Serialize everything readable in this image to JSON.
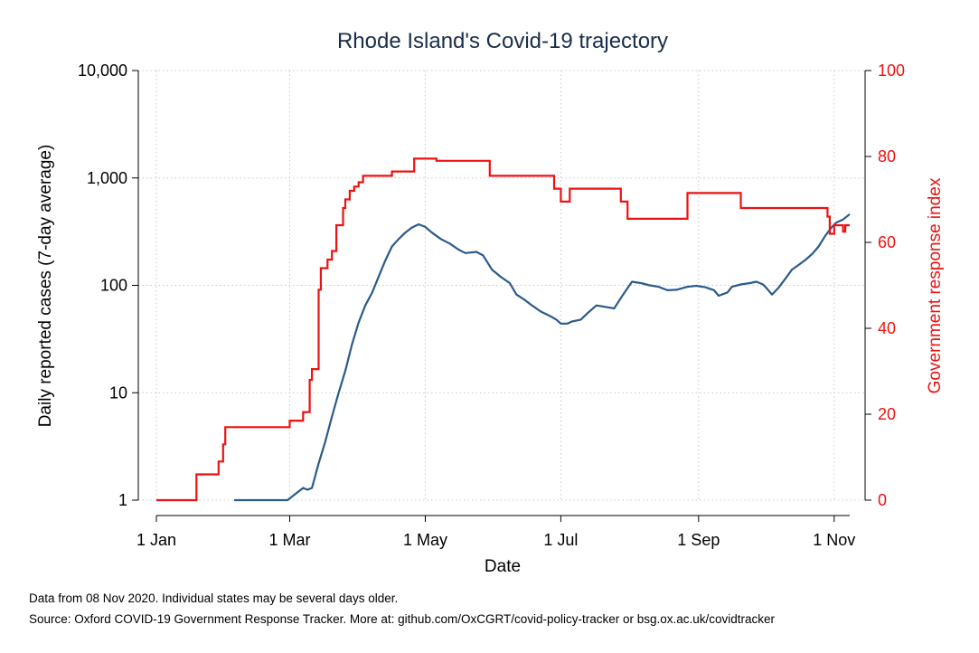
{
  "chart_data": {
    "type": "line",
    "title": "Rhode Island's Covid-19 trajectory",
    "xlabel": "Date",
    "ylabel_left": "Daily reported cases (7-day average)",
    "ylabel_right": "Government response index",
    "x_ticks": [
      "1 Jan",
      "1 Mar",
      "1 May",
      "1 Jul",
      "1 Sep",
      "1 Nov"
    ],
    "x_tick_dates": [
      "2020-01-01",
      "2020-03-01",
      "2020-05-01",
      "2020-07-01",
      "2020-09-01",
      "2020-11-01"
    ],
    "x_range": [
      "2020-01-01",
      "2020-11-08"
    ],
    "y_left_scale": "log",
    "y_left_ticks": [
      "1",
      "10",
      "100",
      "1,000",
      "10,000"
    ],
    "y_left_tick_values": [
      1,
      10,
      100,
      1000,
      10000
    ],
    "y_left_range": [
      1,
      10000
    ],
    "y_right_ticks": [
      "0",
      "20",
      "40",
      "60",
      "80",
      "100"
    ],
    "y_right_tick_values": [
      0,
      20,
      40,
      60,
      80,
      100
    ],
    "y_right_range": [
      0,
      100
    ],
    "grid": true,
    "series": [
      {
        "axis": "left",
        "color": "#2b5a8a",
        "points": [
          [
            "2020-02-05",
            1
          ],
          [
            "2020-02-29",
            1
          ],
          [
            "2020-03-07",
            1.3
          ],
          [
            "2020-03-09",
            1.25
          ],
          [
            "2020-03-11",
            1.3
          ],
          [
            "2020-03-14",
            2.2
          ],
          [
            "2020-03-17",
            3.5
          ],
          [
            "2020-03-20",
            6
          ],
          [
            "2020-03-23",
            10
          ],
          [
            "2020-03-26",
            16
          ],
          [
            "2020-03-29",
            28
          ],
          [
            "2020-04-01",
            45
          ],
          [
            "2020-04-04",
            65
          ],
          [
            "2020-04-07",
            85
          ],
          [
            "2020-04-10",
            120
          ],
          [
            "2020-04-13",
            170
          ],
          [
            "2020-04-16",
            230
          ],
          [
            "2020-04-19",
            270
          ],
          [
            "2020-04-22",
            310
          ],
          [
            "2020-04-25",
            345
          ],
          [
            "2020-04-28",
            370
          ],
          [
            "2020-05-01",
            350
          ],
          [
            "2020-05-04",
            310
          ],
          [
            "2020-05-08",
            270
          ],
          [
            "2020-05-12",
            245
          ],
          [
            "2020-05-16",
            215
          ],
          [
            "2020-05-19",
            200
          ],
          [
            "2020-05-24",
            205
          ],
          [
            "2020-05-27",
            190
          ],
          [
            "2020-05-31",
            140
          ],
          [
            "2020-06-04",
            120
          ],
          [
            "2020-06-08",
            105
          ],
          [
            "2020-06-11",
            82
          ],
          [
            "2020-06-14",
            75
          ],
          [
            "2020-06-18",
            65
          ],
          [
            "2020-06-22",
            57
          ],
          [
            "2020-06-26",
            52
          ],
          [
            "2020-06-29",
            48
          ],
          [
            "2020-07-01",
            44
          ],
          [
            "2020-07-04",
            44
          ],
          [
            "2020-07-06",
            46
          ],
          [
            "2020-07-10",
            48
          ],
          [
            "2020-07-13",
            55
          ],
          [
            "2020-07-17",
            65
          ],
          [
            "2020-07-21",
            63
          ],
          [
            "2020-07-25",
            61
          ],
          [
            "2020-07-29",
            82
          ],
          [
            "2020-08-02",
            108
          ],
          [
            "2020-08-06",
            105
          ],
          [
            "2020-08-10",
            100
          ],
          [
            "2020-08-14",
            97
          ],
          [
            "2020-08-18",
            90
          ],
          [
            "2020-08-22",
            91
          ],
          [
            "2020-08-27",
            97
          ],
          [
            "2020-08-31",
            99
          ],
          [
            "2020-09-04",
            96
          ],
          [
            "2020-09-08",
            90
          ],
          [
            "2020-09-10",
            80
          ],
          [
            "2020-09-14",
            86
          ],
          [
            "2020-09-16",
            97
          ],
          [
            "2020-09-20",
            102
          ],
          [
            "2020-09-24",
            105
          ],
          [
            "2020-09-27",
            108
          ],
          [
            "2020-09-30",
            102
          ],
          [
            "2020-10-02",
            92
          ],
          [
            "2020-10-04",
            82
          ],
          [
            "2020-10-07",
            95
          ],
          [
            "2020-10-10",
            115
          ],
          [
            "2020-10-13",
            140
          ],
          [
            "2020-10-16",
            155
          ],
          [
            "2020-10-19",
            172
          ],
          [
            "2020-10-22",
            195
          ],
          [
            "2020-10-25",
            230
          ],
          [
            "2020-10-28",
            290
          ],
          [
            "2020-10-31",
            350
          ],
          [
            "2020-11-02",
            385
          ],
          [
            "2020-11-05",
            410
          ],
          [
            "2020-11-08",
            460
          ]
        ]
      },
      {
        "axis": "right",
        "color": "#ee1111",
        "steps": [
          [
            "2020-01-01",
            0
          ],
          [
            "2020-01-19",
            6
          ],
          [
            "2020-01-29",
            9
          ],
          [
            "2020-01-31",
            13
          ],
          [
            "2020-02-01",
            17
          ],
          [
            "2020-03-01",
            18.5
          ],
          [
            "2020-03-07",
            20.5
          ],
          [
            "2020-03-10",
            28
          ],
          [
            "2020-03-11",
            30.5
          ],
          [
            "2020-03-14",
            49
          ],
          [
            "2020-03-15",
            54
          ],
          [
            "2020-03-18",
            56
          ],
          [
            "2020-03-20",
            58
          ],
          [
            "2020-03-22",
            64
          ],
          [
            "2020-03-25",
            68
          ],
          [
            "2020-03-26",
            70
          ],
          [
            "2020-03-28",
            72
          ],
          [
            "2020-03-30",
            73
          ],
          [
            "2020-04-01",
            74
          ],
          [
            "2020-04-03",
            75.5
          ],
          [
            "2020-04-16",
            76.5
          ],
          [
            "2020-04-26",
            79.5
          ],
          [
            "2020-05-06",
            79
          ],
          [
            "2020-05-30",
            75.5
          ],
          [
            "2020-06-28",
            72.5
          ],
          [
            "2020-07-01",
            69.5
          ],
          [
            "2020-07-05",
            72.5
          ],
          [
            "2020-07-28",
            69.5
          ],
          [
            "2020-07-31",
            65.5
          ],
          [
            "2020-08-27",
            71.5
          ],
          [
            "2020-09-20",
            68
          ],
          [
            "2020-10-29",
            66
          ],
          [
            "2020-10-30",
            62
          ],
          [
            "2020-11-01",
            64
          ],
          [
            "2020-11-05",
            62.5
          ],
          [
            "2020-11-06",
            64
          ],
          [
            "2020-11-08",
            64
          ]
        ]
      }
    ],
    "footnotes": [
      "Data from 08 Nov 2020. Individual states may be several days older.",
      "Source: Oxford COVID-19 Government Response Tracker. More at: github.com/OxCGRT/covid-policy-tracker or bsg.ox.ac.uk/covidtracker"
    ]
  }
}
